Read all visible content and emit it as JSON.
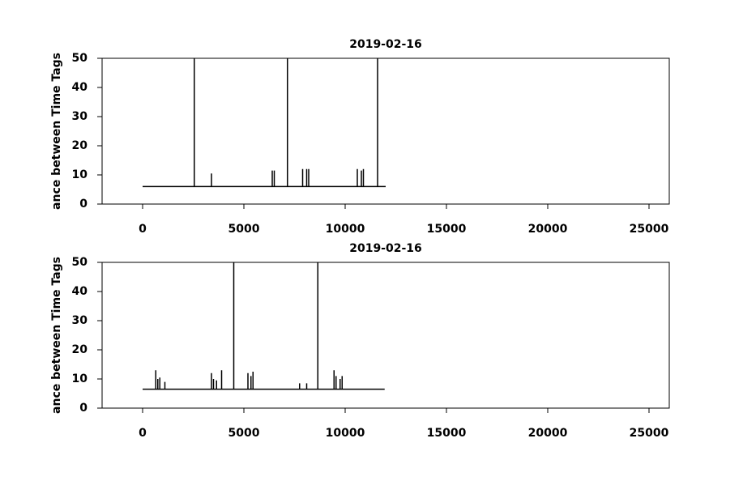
{
  "chart_data": [
    {
      "type": "line",
      "title": "2019-02-16",
      "ylabel": "ance between Time Tags",
      "color": "#000000",
      "xlim": [
        -2000,
        26000
      ],
      "ylim": [
        0,
        50
      ],
      "xticks": [
        0,
        5000,
        10000,
        15000,
        20000,
        25000
      ],
      "yticks": [
        0,
        10,
        20,
        30,
        40,
        50
      ],
      "x": [
        0,
        2550,
        2550,
        2550,
        3400,
        3400,
        3400,
        6400,
        6400,
        6400,
        6500,
        6500,
        6500,
        7150,
        7150,
        7150,
        7900,
        7900,
        7900,
        8100,
        8100,
        8100,
        8200,
        8200,
        8200,
        10600,
        10600,
        10600,
        10800,
        10800,
        10800,
        10900,
        10900,
        10900,
        11600,
        11600,
        11600,
        12000
      ],
      "values": [
        6,
        6,
        50,
        6,
        6,
        10.5,
        6,
        6,
        11.5,
        6,
        6,
        11.5,
        6,
        6,
        50,
        6,
        6,
        12,
        6,
        6,
        12,
        6,
        6,
        12,
        6,
        6,
        12,
        6,
        6,
        11.5,
        6,
        6,
        12,
        6,
        6,
        50,
        6,
        6
      ]
    },
    {
      "type": "line",
      "title": "2019-02-16",
      "ylabel": "ance between Time Tags",
      "color": "#000000",
      "xlim": [
        -2000,
        26000
      ],
      "ylim": [
        0,
        50
      ],
      "xticks": [
        0,
        5000,
        10000,
        15000,
        20000,
        25000
      ],
      "yticks": [
        0,
        10,
        20,
        30,
        40,
        50
      ],
      "x": [
        0,
        650,
        650,
        650,
        750,
        750,
        750,
        850,
        850,
        850,
        1100,
        1100,
        1100,
        3400,
        3400,
        3400,
        3500,
        3500,
        3500,
        3650,
        3650,
        3650,
        3900,
        3900,
        3900,
        4500,
        4500,
        4500,
        5200,
        5200,
        5200,
        5350,
        5350,
        5350,
        5450,
        5450,
        5450,
        7750,
        7750,
        7750,
        8100,
        8100,
        8100,
        8650,
        8650,
        8650,
        9450,
        9450,
        9450,
        9550,
        9550,
        9550,
        9750,
        9750,
        9750,
        9850,
        9850,
        9850,
        11950
      ],
      "values": [
        6.5,
        6.5,
        13,
        6.5,
        6.5,
        10,
        6.5,
        6.5,
        10.5,
        6.5,
        6.5,
        9,
        6.5,
        6.5,
        12,
        6.5,
        6.5,
        10,
        6.5,
        6.5,
        9.5,
        6.5,
        6.5,
        13,
        6.5,
        6.5,
        50,
        6.5,
        6.5,
        12,
        6.5,
        6.5,
        11,
        6.5,
        6.5,
        12.5,
        6.5,
        6.5,
        8.5,
        6.5,
        6.5,
        8.5,
        6.5,
        6.5,
        50,
        6.5,
        6.5,
        13,
        6.5,
        6.5,
        11,
        6.5,
        6.5,
        10,
        6.5,
        6.5,
        11,
        6.5,
        6.5
      ]
    }
  ]
}
